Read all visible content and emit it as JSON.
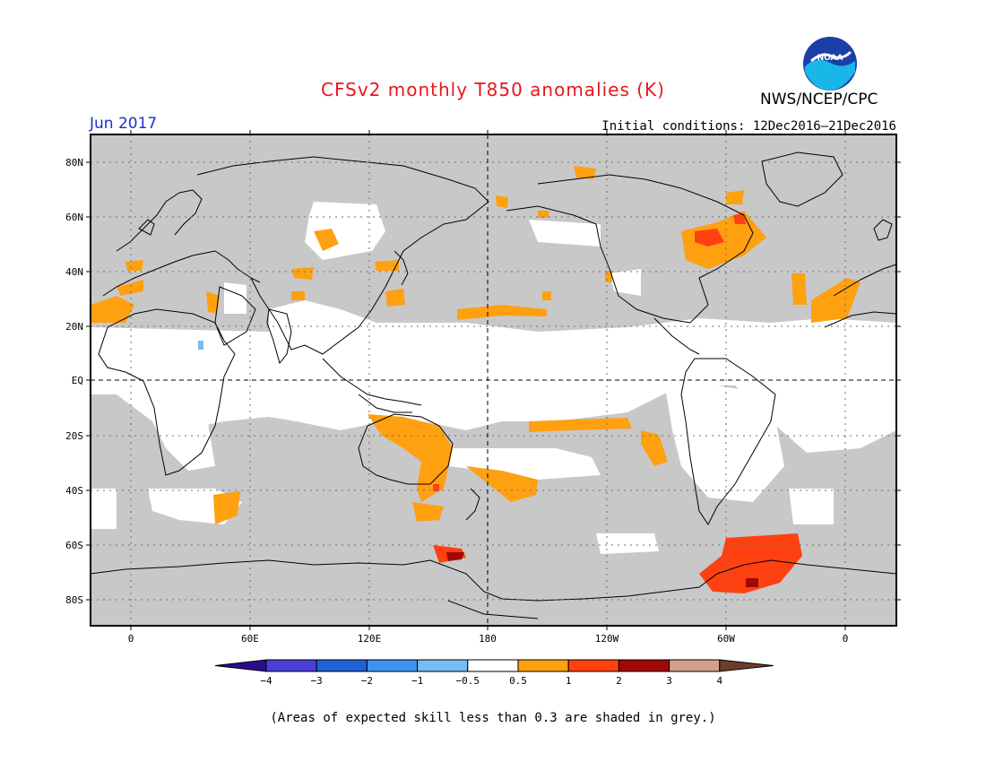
{
  "header": {
    "title": "CFSv2 monthly T850 anomalies (K)",
    "agency": "NWS/NCEP/CPC",
    "logo_text": "NOAA",
    "valid_month": "Jun 2017",
    "initial_conditions": "Initial conditions: 12Dec2016–21Dec2016"
  },
  "map": {
    "lat_labels": [
      "80N",
      "60N",
      "40N",
      "20N",
      "EQ",
      "20S",
      "40S",
      "60S",
      "80S"
    ],
    "lon_labels": [
      "0",
      "60E",
      "120E",
      "180",
      "120W",
      "60W",
      "0"
    ],
    "colors": {
      "low_skill_grey": "#c8c8c8",
      "neutral": "#ffffff",
      "anom_0_5_to_1": "#ffa010",
      "anom_1_to_2": "#ff4010",
      "anom_2_to_3": "#a00808",
      "coastline": "#000000"
    }
  },
  "colorbar": {
    "labels": [
      "−4",
      "−3",
      "−2",
      "−1",
      "−0.5",
      "0.5",
      "1",
      "2",
      "3",
      "4"
    ],
    "colors": [
      "#2d0b8c",
      "#4b3fd8",
      "#1f62d6",
      "#3c94ee",
      "#78bcf4",
      "#ffffff",
      "#ffa010",
      "#ff4010",
      "#a00808",
      "#d4a08c",
      "#6e3c2a"
    ]
  },
  "footer": {
    "caption": "(Areas of expected skill less than 0.3 are shaded in grey.)"
  }
}
